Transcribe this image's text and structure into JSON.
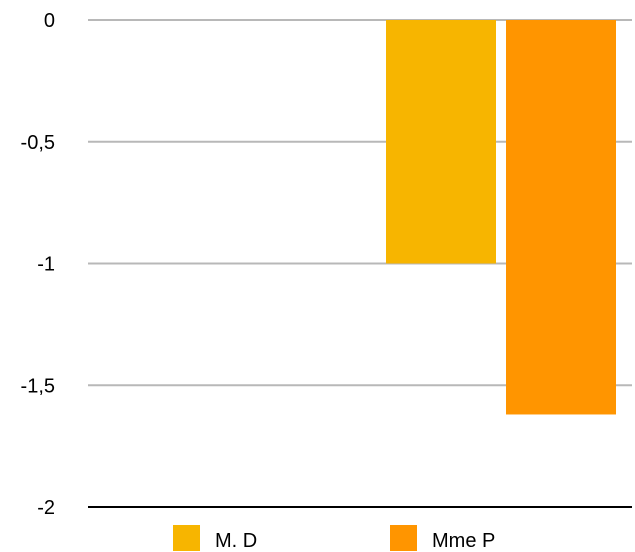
{
  "chart_data": {
    "type": "bar",
    "title": "",
    "xlabel": "",
    "ylabel": "",
    "ylim": [
      -2,
      0
    ],
    "yticks": [
      0,
      -0.5,
      -1,
      -1.5,
      -2
    ],
    "ytick_labels": [
      "0",
      "-0,5",
      "-1",
      "-1,5",
      "-2"
    ],
    "categories": [
      ""
    ],
    "series": [
      {
        "name": "M. D",
        "values": [
          -1.0
        ],
        "color": "#F7B500"
      },
      {
        "name": "Mme P",
        "values": [
          -1.62
        ],
        "color": "#FF9500"
      }
    ],
    "grid": true,
    "legend_position": "bottom"
  }
}
